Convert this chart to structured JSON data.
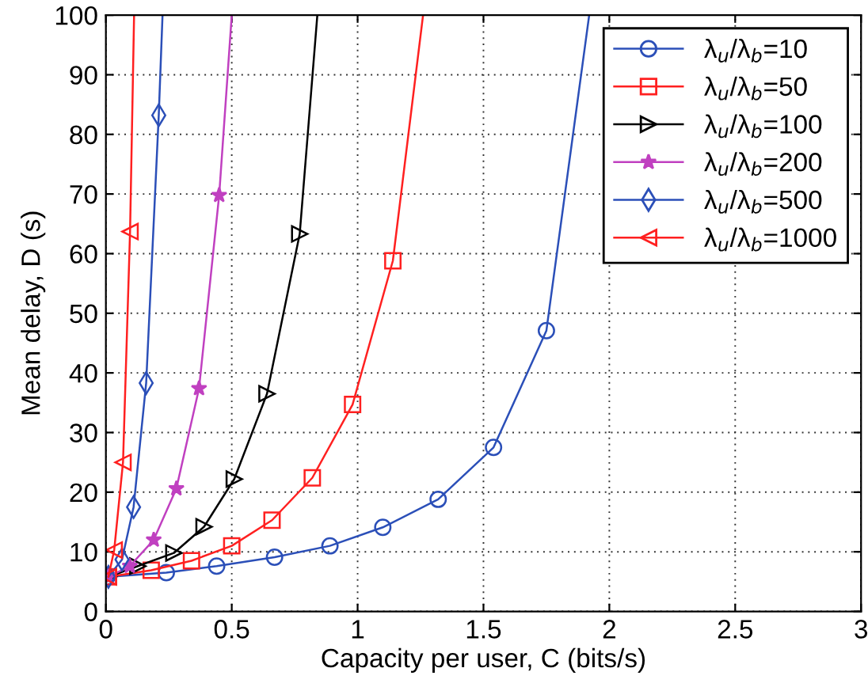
{
  "chart_data": {
    "type": "line",
    "xlabel": "Capacity per user, C (bits/s)",
    "ylabel": "Mean delay, D (s)",
    "xlim": [
      0,
      3
    ],
    "ylim": [
      0,
      100
    ],
    "xticks": [
      0,
      0.5,
      1,
      1.5,
      2,
      2.5,
      3
    ],
    "yticks": [
      0,
      10,
      20,
      30,
      40,
      50,
      60,
      70,
      80,
      90,
      100
    ],
    "grid": true,
    "legend": "top right",
    "line_style": "solid",
    "series": [
      {
        "name": "λ$_{u}$/λ$_{b}$=10",
        "color": "#2b4fb8",
        "marker": "circle",
        "x": [
          0.005,
          0.24,
          0.44,
          0.67,
          0.89,
          1.1,
          1.32,
          1.54,
          1.75,
          1.92
        ],
        "values": [
          5.8,
          6.5,
          7.6,
          9.1,
          11.0,
          14.1,
          18.8,
          27.5,
          47.1,
          100
        ]
      },
      {
        "name": "λ$_{u}$/λ$_{b}$=50",
        "color": "#ff2020",
        "marker": "square",
        "x": [
          0.01,
          0.18,
          0.34,
          0.5,
          0.66,
          0.82,
          0.98,
          1.14,
          1.26
        ],
        "values": [
          5.8,
          6.9,
          8.5,
          11.0,
          15.3,
          22.4,
          34.7,
          58.8,
          100
        ]
      },
      {
        "name": "λ$_{u}$/λ$_{b}$=100",
        "color": "#000000",
        "marker": "triangle_right",
        "x": [
          0.01,
          0.127,
          0.27,
          0.39,
          0.51,
          0.64,
          0.77,
          0.84
        ],
        "values": [
          5.8,
          7.6,
          9.8,
          14.2,
          22.2,
          36.5,
          63.3,
          100
        ]
      },
      {
        "name": "λ$_{u}$/λ$_{b}$=200",
        "color": "#c040c0",
        "marker": "star",
        "x": [
          0.01,
          0.095,
          0.19,
          0.28,
          0.37,
          0.45,
          0.5
        ],
        "values": [
          5.8,
          7.6,
          12.0,
          20.6,
          37.4,
          69.8,
          100
        ]
      },
      {
        "name": "λ$_{u}$/λ$_{b}$=500",
        "color": "#2b4fb8",
        "marker": "diamond",
        "x": [
          0.01,
          0.064,
          0.11,
          0.16,
          0.21,
          0.225
        ],
        "values": [
          5.8,
          8.7,
          17.5,
          38.3,
          83.2,
          100
        ]
      },
      {
        "name": "λ$_{u}$/λ$_{b}$=1000",
        "color": "#ff2020",
        "marker": "triangle_left",
        "x": [
          0.01,
          0.033,
          0.068,
          0.096,
          0.112
        ],
        "values": [
          5.8,
          10.3,
          25.0,
          63.7,
          100
        ]
      }
    ]
  }
}
